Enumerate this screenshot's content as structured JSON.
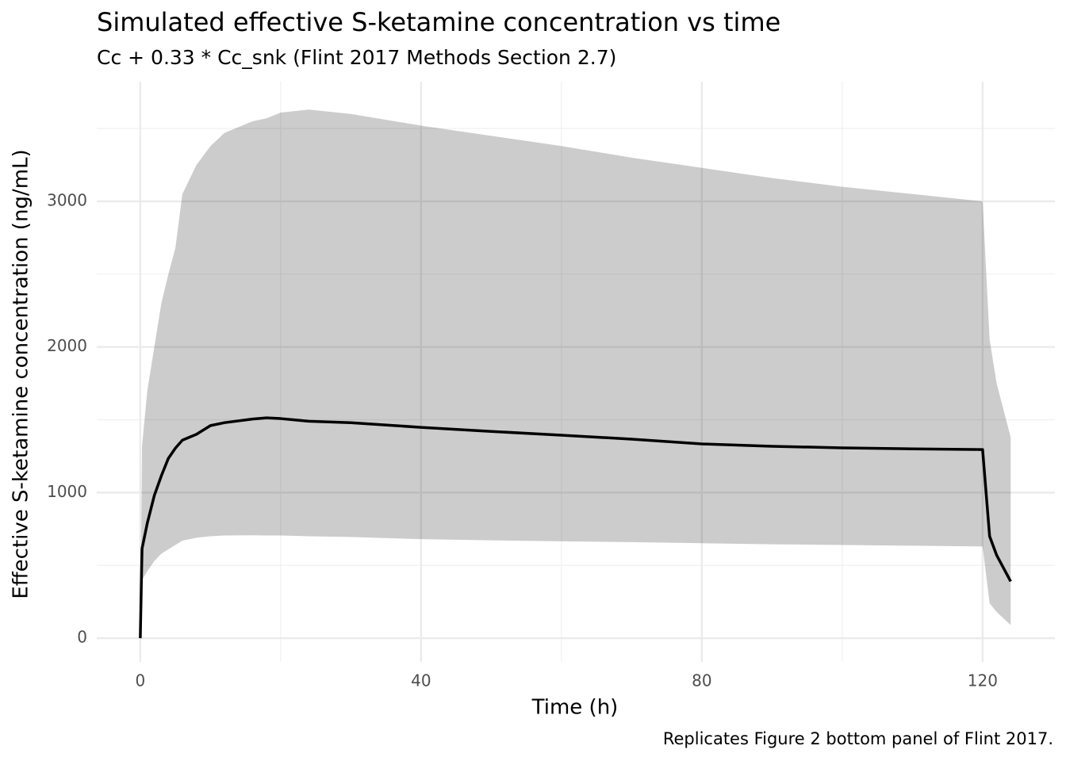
{
  "chart_data": {
    "type": "line",
    "title": "Simulated effective S-ketamine concentration vs time",
    "subtitle": "Cc + 0.33 * Cc_snk (Flint 2017 Methods Section 2.7)",
    "caption": "Replicates Figure 2 bottom panel of Flint 2017.",
    "xlabel": "Time (h)",
    "ylabel": "Effective S-ketamine concentration (ng/mL)",
    "x": [
      0,
      0.25,
      1,
      2,
      3,
      4,
      5,
      6,
      8,
      10,
      12,
      16,
      18,
      20,
      24,
      30,
      40,
      50,
      60,
      70,
      80,
      90,
      100,
      110,
      120,
      121,
      122,
      124
    ],
    "series": [
      {
        "color": "#000000",
        "values": [
          0,
          615,
          790,
          980,
          1115,
          1235,
          1305,
          1360,
          1400,
          1460,
          1480,
          1505,
          1513,
          1508,
          1490,
          1480,
          1448,
          1420,
          1394,
          1367,
          1334,
          1318,
          1307,
          1300,
          1295,
          700,
          570,
          390
        ]
      }
    ],
    "band": {
      "color": "#000000",
      "opacity": 0.2,
      "lower": [
        0,
        400,
        460,
        530,
        580,
        610,
        640,
        670,
        690,
        700,
        705,
        707,
        705,
        705,
        700,
        695,
        680,
        672,
        665,
        660,
        652,
        645,
        640,
        635,
        630,
        240,
        180,
        90
      ],
      "upper": [
        0,
        1320,
        1700,
        2000,
        2300,
        2500,
        2680,
        3050,
        3250,
        3380,
        3470,
        3550,
        3570,
        3610,
        3630,
        3600,
        3520,
        3450,
        3380,
        3300,
        3230,
        3160,
        3100,
        3050,
        3000,
        2050,
        1750,
        1380
      ]
    },
    "xlim": [
      -6.2,
      130.3
    ],
    "ylim": [
      -163,
      3822
    ],
    "xticks": [
      0,
      40,
      80,
      120
    ],
    "yticks": [
      0,
      1000,
      2000,
      3000
    ],
    "xminorticks": [
      20,
      60,
      100
    ],
    "yminorticks": [
      500,
      1500,
      2500,
      3500
    ],
    "grid": true
  }
}
